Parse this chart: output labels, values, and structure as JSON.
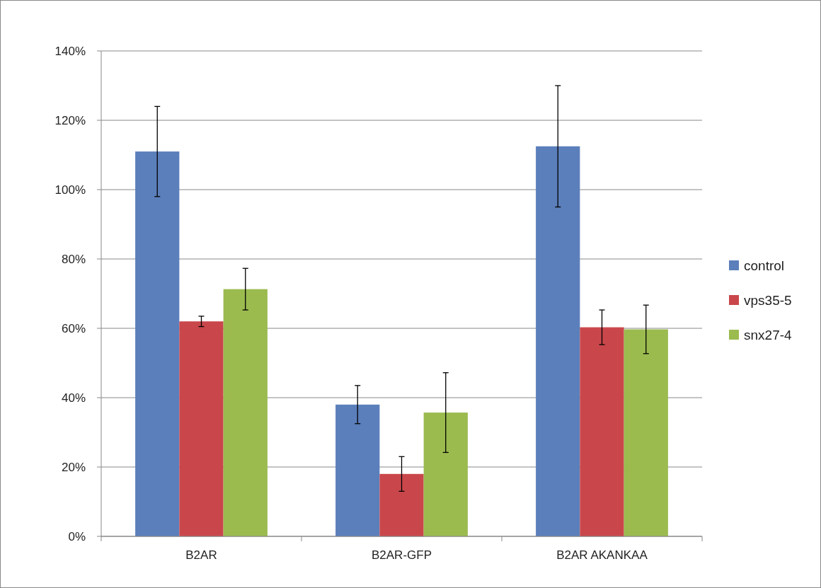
{
  "chart_data": {
    "type": "bar",
    "categories": [
      "B2AR",
      "B2AR-GFP",
      "B2AR AKANKAA"
    ],
    "series": [
      {
        "name": "control",
        "color": "#5b7fbb",
        "values": [
          111,
          38,
          112.5
        ],
        "errors": [
          13,
          5.5,
          17.5
        ]
      },
      {
        "name": "vps35-5",
        "color": "#c9474b",
        "values": [
          62,
          18,
          60.3
        ],
        "errors": [
          1.5,
          5,
          5
        ]
      },
      {
        "name": "snx27-4",
        "color": "#9bbb4f",
        "values": [
          71.3,
          35.7,
          59.7
        ],
        "errors": [
          6,
          11.5,
          7
        ]
      }
    ],
    "ylim": [
      0,
      140
    ],
    "yticks": [
      {
        "value": 0,
        "label": "0%"
      },
      {
        "value": 20,
        "label": "20%"
      },
      {
        "value": 40,
        "label": "40%"
      },
      {
        "value": 60,
        "label": "60%"
      },
      {
        "value": 80,
        "label": "80%"
      },
      {
        "value": 100,
        "label": "100%"
      },
      {
        "value": 120,
        "label": "120%"
      },
      {
        "value": 140,
        "label": "140%"
      }
    ],
    "grid": "y",
    "legend": "right"
  }
}
